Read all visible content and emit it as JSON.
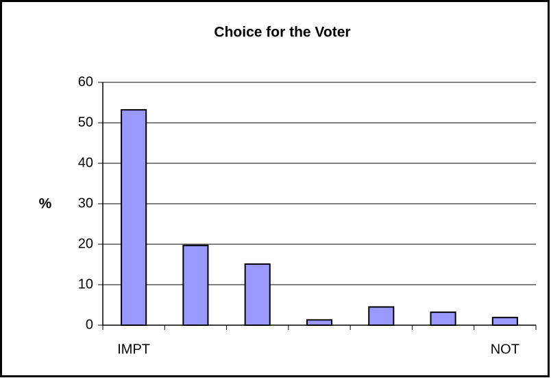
{
  "chart_data": {
    "type": "bar",
    "title": "Choice for the Voter",
    "y_label": "%",
    "categories": [
      "IMPT",
      null,
      null,
      null,
      null,
      null,
      "NOT"
    ],
    "values": [
      53.2,
      19.7,
      15.1,
      1.3,
      4.5,
      3.2,
      1.9
    ],
    "color": "#9999ff",
    "ylim": [
      0,
      60
    ],
    "yticks": [
      0,
      10,
      20,
      30,
      40,
      50,
      60
    ],
    "grid": true
  }
}
